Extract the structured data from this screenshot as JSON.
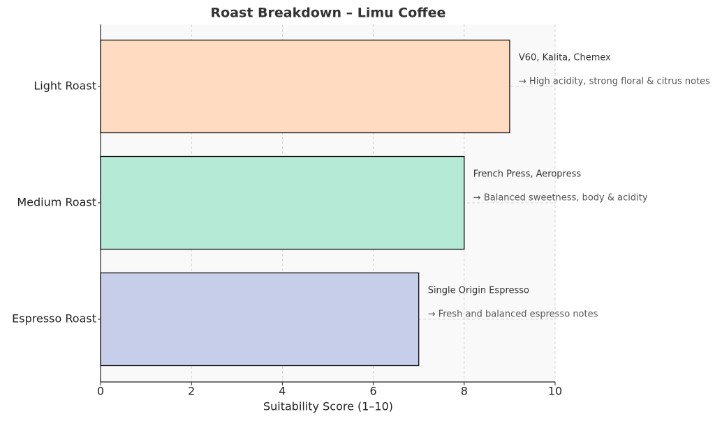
{
  "chart_data": {
    "type": "barh",
    "title": "Roast Breakdown – Limu Coffee",
    "x_label": "Suitability Score (1–10)",
    "categories": [
      "Light Roast",
      "Medium Roast",
      "Espresso Roast"
    ],
    "values": [
      9,
      8,
      7
    ],
    "colors": [
      "#ffdbc1",
      "#b5ead7",
      "#c7ceea"
    ],
    "methods": [
      "V60, Kalita, Chemex",
      "French Press, Aeropress",
      "Single Origin Espresso"
    ],
    "notes": [
      "→ High acidity, strong floral & citrus notes",
      "→ Balanced sweetness, body & acidity",
      "→ Fresh and balanced espresso notes"
    ],
    "xlim": [
      0,
      10
    ],
    "xticks": [
      0,
      2,
      4,
      6,
      8,
      10
    ],
    "grid": true
  }
}
